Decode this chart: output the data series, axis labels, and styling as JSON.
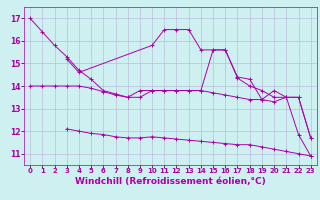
{
  "background_color": "#cff0f0",
  "grid_color": "#bbbbdd",
  "line_color": "#aa00aa",
  "xlabel": "Windchill (Refroidissement éolien,°C)",
  "xlabel_fontsize": 6.5,
  "xtick_fontsize": 5.0,
  "ytick_fontsize": 5.5,
  "ylim": [
    10.5,
    17.5
  ],
  "xlim": [
    -0.5,
    23.5
  ],
  "yticks": [
    11,
    12,
    13,
    14,
    15,
    16,
    17
  ],
  "xticks": [
    0,
    1,
    2,
    3,
    4,
    5,
    6,
    7,
    8,
    9,
    10,
    11,
    12,
    13,
    14,
    15,
    16,
    17,
    18,
    19,
    20,
    21,
    22,
    23
  ],
  "series": [
    {
      "x": [
        0,
        1,
        2,
        3,
        4,
        5,
        6,
        7,
        8,
        9,
        10,
        11,
        12,
        13,
        14,
        15,
        16,
        17,
        18,
        19,
        20,
        21,
        22,
        23
      ],
      "y": [
        17.0,
        16.4,
        15.8,
        15.3,
        14.7,
        14.3,
        13.8,
        13.65,
        13.5,
        13.8,
        13.8,
        13.8,
        13.8,
        13.8,
        13.8,
        15.6,
        15.6,
        14.35,
        14.0,
        13.8,
        13.5,
        13.5,
        13.5,
        11.7
      ]
    },
    {
      "x": [
        0,
        1,
        2,
        3,
        4,
        5,
        6,
        7,
        8,
        9,
        10,
        11,
        12,
        13,
        14,
        15,
        16,
        17,
        18,
        19,
        20,
        21,
        22,
        23
      ],
      "y": [
        14.0,
        14.0,
        14.0,
        14.0,
        14.0,
        13.9,
        13.75,
        13.6,
        13.5,
        13.5,
        13.8,
        13.8,
        13.8,
        13.8,
        13.8,
        13.7,
        13.6,
        13.5,
        13.4,
        13.4,
        13.3,
        13.5,
        13.5,
        11.7
      ]
    },
    {
      "x": [
        3,
        4,
        10,
        11,
        12,
        13,
        14,
        15,
        16,
        17,
        18,
        19,
        20,
        21,
        22,
        23
      ],
      "y": [
        15.2,
        14.6,
        15.8,
        16.5,
        16.5,
        16.5,
        15.6,
        15.6,
        15.6,
        14.4,
        14.3,
        13.4,
        13.8,
        13.5,
        11.85,
        10.9
      ]
    },
    {
      "x": [
        3,
        4,
        5,
        6,
        7,
        8,
        9,
        10,
        11,
        12,
        13,
        14,
        15,
        16,
        17,
        18,
        19,
        20,
        21,
        22,
        23
      ],
      "y": [
        12.1,
        12.0,
        11.9,
        11.85,
        11.75,
        11.7,
        11.7,
        11.75,
        11.7,
        11.65,
        11.6,
        11.55,
        11.5,
        11.45,
        11.4,
        11.4,
        11.3,
        11.2,
        11.1,
        11.0,
        10.9
      ]
    }
  ]
}
